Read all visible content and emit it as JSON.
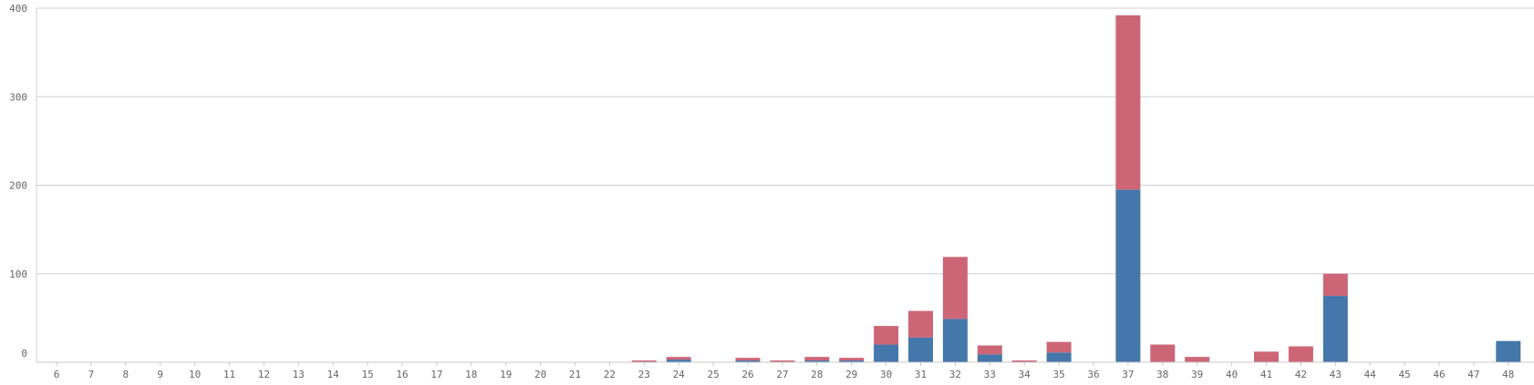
{
  "chart_data": {
    "type": "bar",
    "stacked": true,
    "title": "",
    "xlabel": "",
    "ylabel": "",
    "categories": [
      "6",
      "7",
      "8",
      "9",
      "10",
      "11",
      "12",
      "13",
      "14",
      "15",
      "16",
      "17",
      "18",
      "19",
      "20",
      "21",
      "22",
      "23",
      "24",
      "25",
      "26",
      "27",
      "28",
      "29",
      "30",
      "31",
      "32",
      "33",
      "34",
      "35",
      "36",
      "37",
      "38",
      "39",
      "40",
      "41",
      "42",
      "43",
      "44",
      "45",
      "46",
      "47",
      "48"
    ],
    "series": [
      {
        "color": "#4477aa",
        "values": [
          0,
          0,
          0,
          0,
          0,
          0,
          0,
          0,
          0,
          0,
          0,
          0,
          0,
          0,
          0,
          0,
          0,
          0,
          3,
          0,
          2,
          0,
          2,
          2,
          20,
          28,
          49,
          9,
          0,
          11,
          0,
          195,
          0,
          0,
          0,
          0,
          0,
          75,
          0,
          0,
          0,
          0,
          24
        ]
      },
      {
        "color": "#cc6677",
        "values": [
          0,
          0,
          0,
          0,
          0,
          0,
          0,
          0,
          0,
          0,
          0,
          0,
          0,
          0,
          0,
          0,
          0,
          2,
          3,
          0,
          3,
          2,
          4,
          3,
          21,
          30,
          70,
          10,
          2,
          12,
          0,
          197,
          20,
          6,
          0,
          12,
          18,
          25,
          0,
          0,
          0,
          0,
          0
        ]
      }
    ],
    "ylim": [
      0,
      400
    ],
    "yticks": [
      0,
      100,
      200,
      300,
      400
    ],
    "grid": true,
    "legend": "none"
  }
}
